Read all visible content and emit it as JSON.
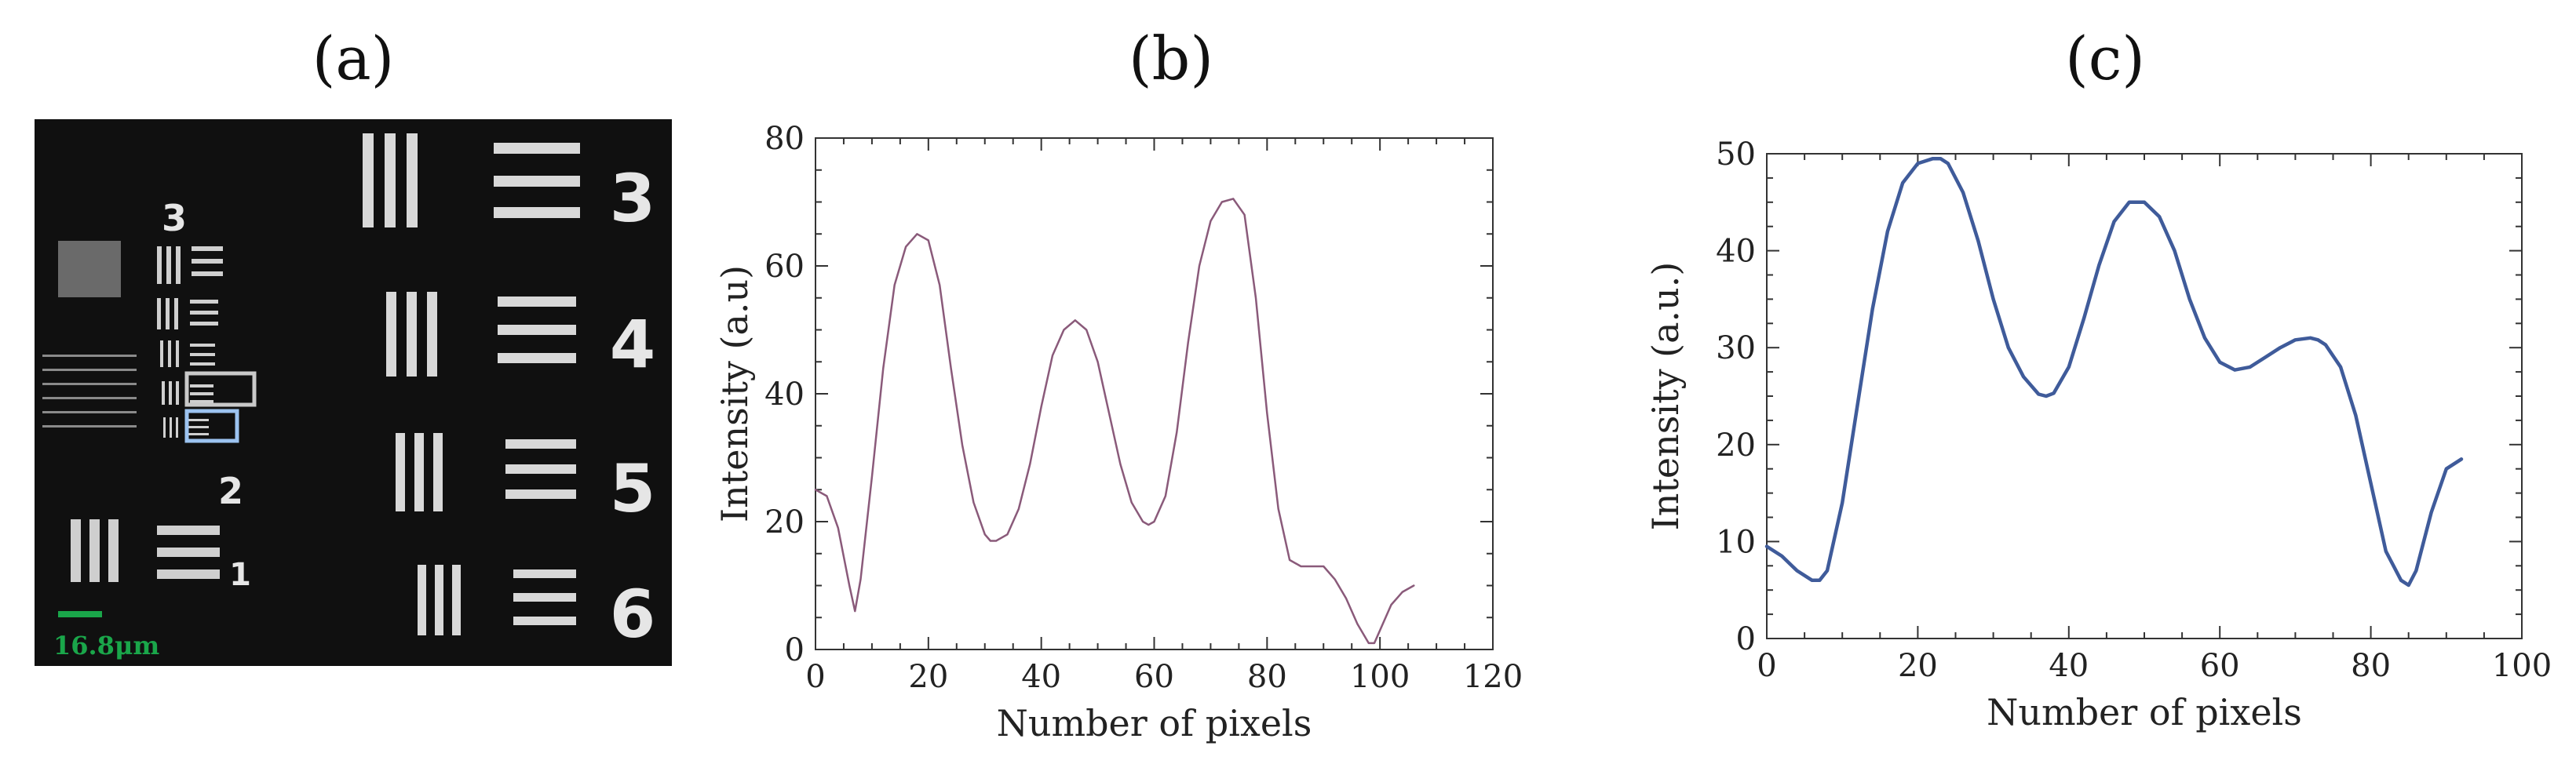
{
  "panels": {
    "a": {
      "label": "(a)",
      "scale_bar_text": "16.8μm",
      "scale_bar_color": "#1aa64a",
      "group_numbers": [
        "3",
        "2",
        "1"
      ],
      "element_numbers": [
        "3",
        "4",
        "5",
        "6"
      ],
      "highlight_box_colors": [
        "#c9c9c9",
        "#9cc3f0"
      ]
    },
    "b": {
      "label": "(b)"
    },
    "c": {
      "label": "(c)"
    }
  },
  "chart_data": [
    {
      "type": "line",
      "panel": "(b)",
      "xlabel": "Number of pixels",
      "ylabel": "Intensity (a.u)",
      "xlim": [
        0,
        120
      ],
      "ylim": [
        0,
        80
      ],
      "xticks": [
        0,
        20,
        40,
        60,
        80,
        100,
        120
      ],
      "yticks": [
        0,
        20,
        40,
        60,
        80
      ],
      "grid": false,
      "line_color": "#8a5a7a",
      "series": [
        {
          "x": [
            0,
            2,
            4,
            6,
            7,
            8,
            10,
            12,
            14,
            16,
            18,
            20,
            22,
            24,
            26,
            28,
            30,
            31,
            32,
            34,
            36,
            38,
            40,
            42,
            44,
            46,
            48,
            50,
            52,
            54,
            56,
            58,
            59,
            60,
            62,
            64,
            66,
            68,
            70,
            72,
            74,
            76,
            78,
            80,
            82,
            84,
            86,
            88,
            90,
            92,
            94,
            96,
            98,
            99,
            100,
            102,
            104,
            106
          ],
          "y": [
            25,
            24,
            19,
            10,
            6,
            11,
            27,
            44,
            57,
            63,
            65,
            64,
            57,
            44,
            32,
            23,
            18,
            17,
            17,
            18,
            22,
            29,
            38,
            46,
            50,
            51.5,
            50,
            45,
            37,
            29,
            23,
            20,
            19.5,
            20,
            24,
            34,
            48,
            60,
            67,
            70,
            70.5,
            68,
            55,
            37,
            22,
            14,
            13,
            13,
            13,
            11,
            8,
            4,
            1,
            1,
            3,
            7,
            9,
            10
          ]
        }
      ]
    },
    {
      "type": "line",
      "panel": "(c)",
      "xlabel": "Number of pixels",
      "ylabel": "Intensity (a.u.)",
      "xlim": [
        0,
        100
      ],
      "ylim": [
        0,
        50
      ],
      "xticks": [
        0,
        20,
        40,
        60,
        80,
        100
      ],
      "yticks": [
        0,
        10,
        20,
        30,
        40,
        50
      ],
      "grid": false,
      "line_color": "#3f5b9a",
      "series": [
        {
          "x": [
            0,
            2,
            4,
            6,
            7,
            8,
            10,
            12,
            14,
            16,
            18,
            20,
            22,
            23,
            24,
            26,
            28,
            30,
            32,
            34,
            36,
            37,
            38,
            40,
            42,
            44,
            46,
            48,
            50,
            52,
            54,
            56,
            58,
            60,
            62,
            64,
            66,
            68,
            70,
            72,
            73,
            74,
            76,
            78,
            80,
            82,
            84,
            85,
            86,
            88,
            90,
            92
          ],
          "y": [
            9.5,
            8.5,
            7,
            6,
            6,
            7,
            14,
            24,
            34,
            42,
            47,
            49,
            49.5,
            49.5,
            49,
            46,
            41,
            35,
            30,
            27,
            25.2,
            25,
            25.3,
            28,
            33,
            38.5,
            43,
            45,
            45,
            43.5,
            40,
            35,
            31,
            28.5,
            27.7,
            28,
            29,
            30,
            30.8,
            31,
            30.8,
            30.3,
            28,
            23,
            16,
            9,
            6,
            5.5,
            7,
            13,
            17.5,
            18.5
          ]
        }
      ]
    }
  ]
}
